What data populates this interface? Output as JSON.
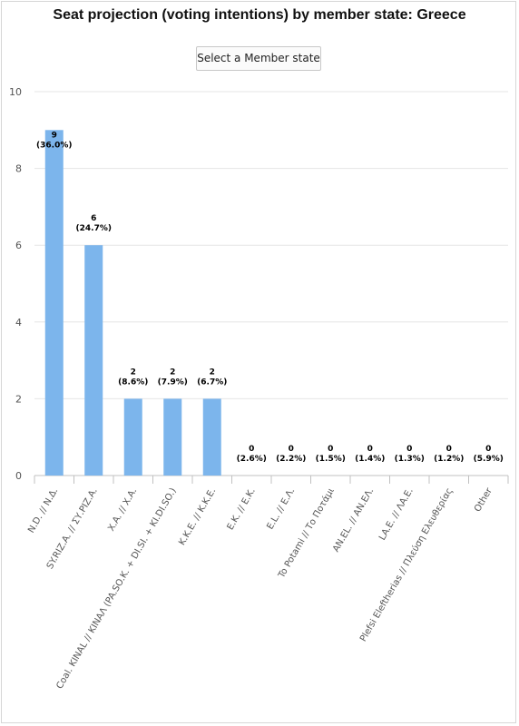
{
  "chart_data": {
    "type": "bar",
    "title": "Seat projection (voting intentions) by member state: Greece",
    "xlabel": "",
    "ylabel": "",
    "ylim": [
      0,
      10
    ],
    "yticks": [
      0,
      2,
      4,
      6,
      8,
      10
    ],
    "grid": true,
    "bar_color": "#7cb5ec",
    "categories": [
      "N.D. // Ν.Δ.",
      "SY.RIZ.A. // ΣΥ.ΡΙΖ.Α.",
      "X.A. // Χ.Α.",
      "Coal. KINAL // ΚΙΝΑΛ (PA.SO.K. + DI.SI. + KI.DI.SO.)",
      "K.K.E. // Κ.Κ.Ε.",
      "E.K. // Ε.Κ.",
      "E.L. // Ε.Λ.",
      "To Potami // Το Ποτάμι",
      "AN.EL. // ΑΝ.ΕΛ.",
      "LA.E. // ΛΑ.Ε.",
      "Plefsi Eleftherias // Πλεύση Ελευθερίας",
      "Other"
    ],
    "values": [
      9,
      6,
      2,
      2,
      2,
      0,
      0,
      0,
      0,
      0,
      0,
      0
    ],
    "percent_labels": [
      "(36.0%)",
      "(24.7%)",
      "(8.6%)",
      "(7.9%)",
      "(6.7%)",
      "(2.6%)",
      "(2.2%)",
      "(1.5%)",
      "(1.4%)",
      "(1.3%)",
      "(1.2%)",
      "(5.9%)"
    ]
  },
  "controls": {
    "member_state_button": "Select a Member state"
  }
}
